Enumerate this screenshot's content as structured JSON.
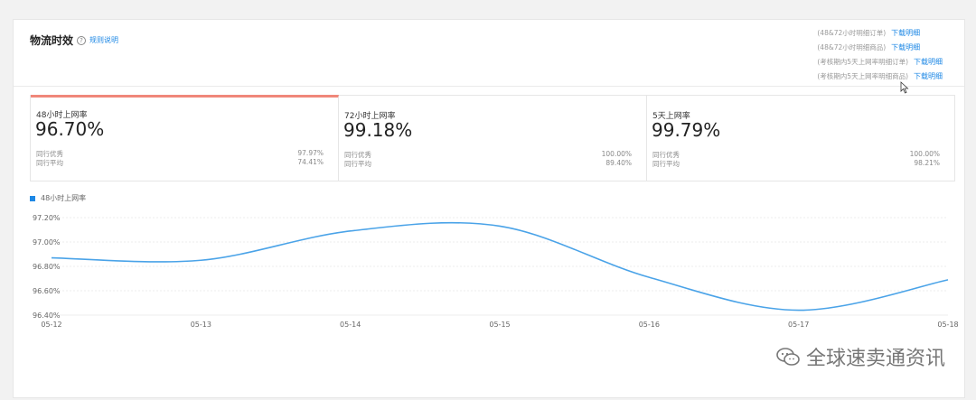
{
  "header": {
    "title": "物流时效",
    "help_icon": "question-circle-icon",
    "rules_link": "规则说明"
  },
  "downloads": [
    {
      "desc": "(48&72小时明细订单)",
      "link": "下载明细"
    },
    {
      "desc": "(48&72小时明细商品)",
      "link": "下载明细"
    },
    {
      "desc": "(考核期内5天上网率明细订单)",
      "link": "下载明细"
    },
    {
      "desc": "(考核期内5天上网率明细商品)",
      "link": "下载明细"
    }
  ],
  "cards": [
    {
      "label": "48小时上网率",
      "value": "96.70%",
      "excellent_label": "同行优秀",
      "excellent_value": "97.97%",
      "average_label": "同行平均",
      "average_value": "74.41%",
      "active": true
    },
    {
      "label": "72小时上网率",
      "value": "99.18%",
      "excellent_label": "同行优秀",
      "excellent_value": "100.00%",
      "average_label": "同行平均",
      "average_value": "89.40%",
      "active": false
    },
    {
      "label": "5天上网率",
      "value": "99.79%",
      "excellent_label": "同行优秀",
      "excellent_value": "100.00%",
      "average_label": "同行平均",
      "average_value": "98.21%",
      "active": false
    }
  ],
  "colors": {
    "accent": "#1e88e5",
    "active_bar": "#f0877a",
    "line": "#4aa3e8"
  },
  "watermark": "全球速卖通资讯",
  "chart_data": {
    "type": "line",
    "x": [
      "05-12",
      "05-13",
      "05-14",
      "05-15",
      "05-16",
      "05-17",
      "05-18"
    ],
    "series": [
      {
        "name": "48小时上网率",
        "values": [
          96.87,
          96.85,
          97.09,
          97.13,
          96.71,
          96.44,
          96.69
        ]
      }
    ],
    "yticks": [
      "97.20%",
      "97.00%",
      "96.80%",
      "96.60%",
      "96.40%"
    ],
    "ylim": [
      96.4,
      97.2
    ],
    "legend": "top-left",
    "grid": true
  }
}
